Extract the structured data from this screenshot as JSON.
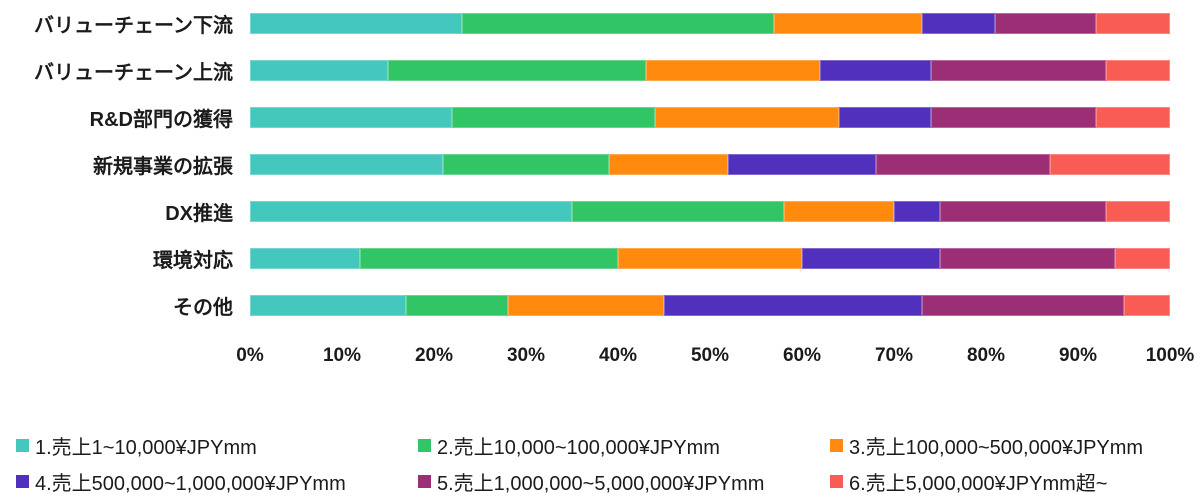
{
  "chart_data": {
    "type": "bar",
    "orientation": "horizontal",
    "stacked": true,
    "unit": "percent",
    "title": "",
    "xlabel": "",
    "ylabel": "",
    "xlim": [
      0,
      100
    ],
    "grid": false,
    "legend_position": "bottom",
    "categories": [
      "バリューチェーン下流",
      "バリューチェーン上流",
      "R&D部門の獲得",
      "新規事業の拡張",
      "DX推進",
      "環境対応",
      "その他"
    ],
    "x_ticks": [
      "0%",
      "10%",
      "20%",
      "30%",
      "40%",
      "50%",
      "60%",
      "70%",
      "80%",
      "90%",
      "100%"
    ],
    "series": [
      {
        "name": "1.売上1~10,000¥JPYmm",
        "color": "#44C7BD",
        "values": [
          23,
          15,
          22,
          21,
          35,
          12,
          17
        ]
      },
      {
        "name": "2.売上10,000~100,000¥JPYmm",
        "color": "#32C566",
        "values": [
          34,
          28,
          22,
          18,
          23,
          28,
          11
        ]
      },
      {
        "name": "3.売上100,000~500,000¥JPYmm",
        "color": "#FF8A0E",
        "values": [
          16,
          19,
          20,
          13,
          12,
          20,
          17
        ]
      },
      {
        "name": "4.売上500,000~1,000,000¥JPYmm",
        "color": "#5130BD",
        "values": [
          8,
          12,
          10,
          16,
          5,
          15,
          28
        ]
      },
      {
        "name": "5.売上1,000,000~5,000,000¥JPYmm",
        "color": "#9C2E76",
        "values": [
          11,
          19,
          18,
          19,
          18,
          19,
          22
        ]
      },
      {
        "name": "6.売上5,000,000¥JPYmm超~",
        "color": "#F95B55",
        "values": [
          8,
          7,
          8,
          13,
          7,
          6,
          5
        ]
      }
    ],
    "text_color": "#1b1b1b",
    "background_color": "#ffffff"
  }
}
